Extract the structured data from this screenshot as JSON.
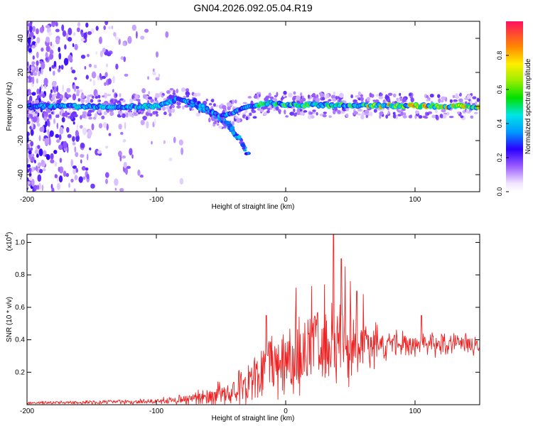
{
  "title": "GN04.2026.092.05.04.R19",
  "chart_data": [
    {
      "type": "heatmap",
      "xlabel": "Height of straight line (km)",
      "ylabel": "Frequency (Hz)",
      "xlim": [
        -200,
        150
      ],
      "ylim": [
        -50,
        50
      ],
      "xticks": [
        -200,
        -100,
        0,
        100
      ],
      "yticks": [
        -40,
        -20,
        0,
        20,
        40
      ],
      "colorbar": {
        "label": "Normalized spectral amplitude",
        "range": [
          0,
          1
        ],
        "ticks": [
          0.0,
          0.2,
          0.4,
          0.6,
          0.8
        ],
        "tick_labels": [
          "0.0",
          "0.2",
          "0.4",
          "0.6",
          "0.8"
        ]
      },
      "ridge": [
        {
          "x": -200,
          "f": 0
        },
        {
          "x": -100,
          "f": 0
        },
        {
          "x": -85,
          "f": 4
        },
        {
          "x": -70,
          "f": 3
        },
        {
          "x": -60,
          "f": -2
        },
        {
          "x": -50,
          "f": -6
        },
        {
          "x": -40,
          "f": -3
        },
        {
          "x": -30,
          "f": 0
        },
        {
          "x": -10,
          "f": 2
        },
        {
          "x": 0,
          "f": 1
        },
        {
          "x": 150,
          "f": 0
        }
      ],
      "descending_branch": [
        {
          "x": -75,
          "f": 2
        },
        {
          "x": -60,
          "f": -2
        },
        {
          "x": -45,
          "f": -10
        },
        {
          "x": -35,
          "f": -20
        },
        {
          "x": -28,
          "f": -30
        }
      ]
    },
    {
      "type": "line",
      "xlabel": "Height of straight line (km)",
      "ylabel": "SNR (10 * v/v)",
      "y_multiplier": "(x10",
      "y_multiplier_exp": "4",
      "y_multiplier_close": ")",
      "xlim": [
        -200,
        150
      ],
      "ylim": [
        0,
        1.05
      ],
      "xticks": [
        -200,
        -100,
        0,
        100
      ],
      "yticks": [
        0.2,
        0.4,
        0.6,
        0.8,
        1.0
      ],
      "ytick_labels": [
        "0.2",
        "0.4",
        "0.6",
        "0.8",
        "1.0"
      ],
      "series_color": "#ee2222",
      "envelope": [
        {
          "x": -200,
          "base": 0.01,
          "amp": 0.01
        },
        {
          "x": -100,
          "base": 0.02,
          "amp": 0.02
        },
        {
          "x": -80,
          "base": 0.03,
          "amp": 0.04
        },
        {
          "x": -60,
          "base": 0.05,
          "amp": 0.07
        },
        {
          "x": -40,
          "base": 0.08,
          "amp": 0.12
        },
        {
          "x": -30,
          "base": 0.12,
          "amp": 0.16
        },
        {
          "x": -20,
          "base": 0.18,
          "amp": 0.2
        },
        {
          "x": -10,
          "base": 0.24,
          "amp": 0.24
        },
        {
          "x": 0,
          "base": 0.28,
          "amp": 0.27
        },
        {
          "x": 10,
          "base": 0.32,
          "amp": 0.3
        },
        {
          "x": 20,
          "base": 0.34,
          "amp": 0.32
        },
        {
          "x": 30,
          "base": 0.36,
          "amp": 0.34
        },
        {
          "x": 40,
          "base": 0.36,
          "amp": 0.32
        },
        {
          "x": 50,
          "base": 0.35,
          "amp": 0.26
        },
        {
          "x": 60,
          "base": 0.36,
          "amp": 0.2
        },
        {
          "x": 80,
          "base": 0.37,
          "amp": 0.12
        },
        {
          "x": 100,
          "base": 0.37,
          "amp": 0.1
        },
        {
          "x": 120,
          "base": 0.37,
          "amp": 0.08
        },
        {
          "x": 150,
          "base": 0.38,
          "amp": 0.08
        }
      ],
      "peaks": [
        {
          "x": 37,
          "y": 1.05
        },
        {
          "x": 43,
          "y": 0.9
        },
        {
          "x": 46,
          "y": 0.85
        },
        {
          "x": 8,
          "y": 0.72
        },
        {
          "x": 20,
          "y": 0.73
        },
        {
          "x": 30,
          "y": 0.74
        },
        {
          "x": 55,
          "y": 0.7
        },
        {
          "x": 60,
          "y": 0.68
        },
        {
          "x": -15,
          "y": 0.55
        },
        {
          "x": 50,
          "y": 0.76
        },
        {
          "x": 105,
          "y": 0.55
        }
      ]
    }
  ]
}
